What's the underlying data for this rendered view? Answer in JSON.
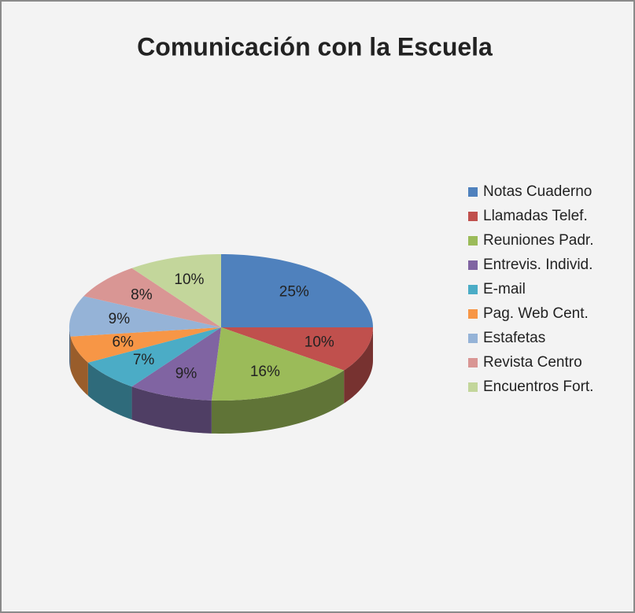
{
  "chart_data": {
    "type": "pie",
    "title": "Comunicación con la Escuela",
    "categories": [
      "Notas Cuaderno",
      "Llamadas Telef.",
      "Reuniones Padr.",
      "Entrevis. Individ.",
      "E-mail",
      "Pag. Web Cent.",
      "Estafetas",
      "Revista Centro",
      "Encuentros Fort."
    ],
    "values": [
      25,
      10,
      16,
      9,
      7,
      6,
      9,
      8,
      10
    ],
    "value_labels": [
      "25%",
      "10%",
      "16%",
      "9%",
      "7%",
      "6%",
      "9%",
      "8%",
      "10%"
    ],
    "colors": [
      "#4f81bd",
      "#c0504d",
      "#9bbb59",
      "#8064a2",
      "#4bacc6",
      "#f79646",
      "#95b3d7",
      "#d99694",
      "#c3d69b"
    ],
    "legend": "right"
  }
}
